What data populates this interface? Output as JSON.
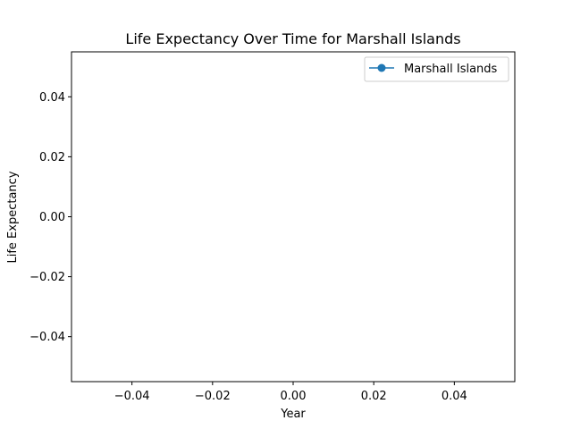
{
  "chart_data": {
    "type": "line",
    "title": "Life Expectancy Over Time for Marshall Islands",
    "xlabel": "Year",
    "ylabel": "Life Expectancy",
    "xlim": [
      -0.055,
      0.055
    ],
    "ylim": [
      -0.055,
      0.055
    ],
    "xticks": [
      -0.04,
      -0.02,
      0.0,
      0.02,
      0.04
    ],
    "xtick_labels": [
      "−0.04",
      "−0.02",
      "0.00",
      "0.02",
      "0.04"
    ],
    "yticks": [
      -0.04,
      -0.02,
      0.0,
      0.02,
      0.04
    ],
    "ytick_labels": [
      "−0.04",
      "−0.02",
      "0.00",
      "0.02",
      "0.04"
    ],
    "grid": false,
    "legend_position": "upper right",
    "series": [
      {
        "name": "Marshall Islands",
        "color": "#1f77b4",
        "marker": "circle",
        "x": [],
        "y": []
      }
    ]
  }
}
